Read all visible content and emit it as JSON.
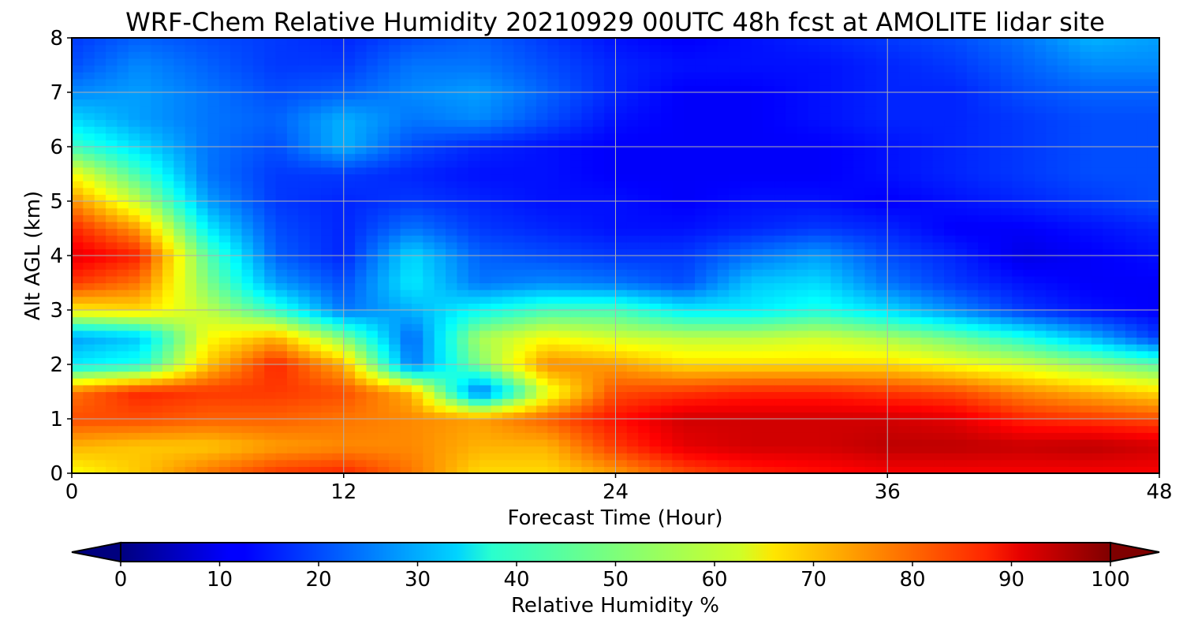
{
  "chart_data": {
    "type": "heatmap",
    "title": "WRF-Chem Relative Humidity 20210929 00UTC 48h fcst at AMOLITE lidar site",
    "xlabel": "Forecast Time (Hour)",
    "ylabel": "Alt AGL (km)",
    "xlim": [
      0,
      48
    ],
    "ylim": [
      0,
      8
    ],
    "x_ticks": [
      "0",
      "12",
      "24",
      "36",
      "48"
    ],
    "y_ticks": [
      "0",
      "1",
      "2",
      "3",
      "4",
      "5",
      "6",
      "7",
      "8"
    ],
    "grid": true,
    "colormap": "jet",
    "colorbar": {
      "label": "Relative Humidity %",
      "range": [
        0,
        100
      ],
      "ticks": [
        "0",
        "10",
        "20",
        "30",
        "40",
        "50",
        "60",
        "70",
        "80",
        "90",
        "100"
      ],
      "extend": "both",
      "placement": "bottom"
    },
    "x_hours": [
      0,
      3,
      6,
      9,
      12,
      15,
      18,
      21,
      24,
      27,
      30,
      33,
      36,
      39,
      42,
      45,
      48
    ],
    "alt_km": [
      0.0,
      0.5,
      1.0,
      1.5,
      2.0,
      2.5,
      3.0,
      3.5,
      4.0,
      4.5,
      5.0,
      5.5,
      6.0,
      6.5,
      7.0,
      7.5,
      8.0
    ],
    "values": [
      [
        62,
        68,
        76,
        82,
        84,
        76,
        66,
        66,
        72,
        80,
        84,
        86,
        88,
        88,
        88,
        88,
        88
      ],
      [
        70,
        68,
        68,
        72,
        74,
        74,
        70,
        70,
        82,
        90,
        92,
        92,
        94,
        94,
        93,
        94,
        92
      ],
      [
        80,
        80,
        78,
        78,
        76,
        74,
        72,
        78,
        86,
        92,
        92,
        92,
        92,
        90,
        84,
        82,
        80
      ],
      [
        76,
        84,
        82,
        82,
        80,
        70,
        22,
        60,
        80,
        82,
        84,
        84,
        82,
        80,
        74,
        70,
        66
      ],
      [
        36,
        40,
        68,
        84,
        70,
        24,
        50,
        74,
        72,
        66,
        66,
        66,
        66,
        62,
        58,
        52,
        46
      ],
      [
        28,
        32,
        62,
        70,
        50,
        22,
        54,
        62,
        58,
        56,
        56,
        58,
        54,
        48,
        40,
        30,
        18
      ],
      [
        64,
        66,
        56,
        42,
        24,
        30,
        38,
        44,
        44,
        36,
        36,
        40,
        34,
        26,
        18,
        14,
        12
      ],
      [
        82,
        76,
        50,
        28,
        20,
        36,
        24,
        26,
        24,
        20,
        32,
        34,
        24,
        18,
        14,
        12,
        12
      ],
      [
        90,
        84,
        46,
        22,
        16,
        34,
        22,
        20,
        18,
        18,
        24,
        28,
        20,
        16,
        10,
        12,
        14
      ],
      [
        84,
        72,
        36,
        20,
        16,
        24,
        18,
        16,
        14,
        14,
        16,
        18,
        16,
        12,
        12,
        14,
        16
      ],
      [
        74,
        56,
        28,
        18,
        16,
        18,
        16,
        14,
        14,
        12,
        14,
        14,
        12,
        14,
        16,
        18,
        20
      ],
      [
        62,
        44,
        24,
        18,
        18,
        16,
        14,
        14,
        12,
        12,
        12,
        12,
        14,
        16,
        18,
        20,
        20
      ],
      [
        44,
        34,
        24,
        20,
        30,
        20,
        16,
        14,
        12,
        12,
        12,
        12,
        14,
        16,
        18,
        20,
        20
      ],
      [
        34,
        28,
        24,
        22,
        30,
        24,
        26,
        20,
        14,
        12,
        12,
        14,
        16,
        16,
        18,
        20,
        20
      ],
      [
        26,
        28,
        24,
        20,
        22,
        26,
        28,
        22,
        16,
        12,
        12,
        14,
        16,
        16,
        20,
        22,
        22
      ],
      [
        20,
        26,
        22,
        18,
        18,
        24,
        24,
        20,
        16,
        14,
        14,
        14,
        16,
        18,
        22,
        26,
        26
      ],
      [
        18,
        22,
        20,
        18,
        16,
        20,
        22,
        18,
        14,
        12,
        14,
        16,
        18,
        20,
        24,
        30,
        28
      ]
    ]
  }
}
